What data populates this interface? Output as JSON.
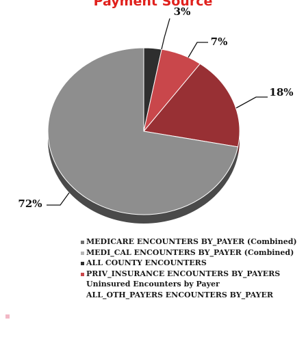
{
  "chart_data": {
    "type": "pie",
    "title": "Payment Source",
    "slices": [
      {
        "label": "ALL COUNTY ENCOUNTERS",
        "value": 3,
        "label_text": "3%",
        "color": "#2e2e2e",
        "side_color": "#1a1a1a"
      },
      {
        "label": "PRIV_INSURANCE ENCOUNTERS BY_PAYERS",
        "value": 7,
        "label_text": "7%",
        "color": "#c9474b",
        "side_color": "#8f2d30"
      },
      {
        "label": "Uninsured Encounters by Payer",
        "value": 18,
        "label_text": "18%",
        "color": "#983034",
        "side_color": "#6b1f22"
      },
      {
        "label": "MEDICARE ENCOUNTERS BY_PAYER (Combined)",
        "value": 72,
        "label_text": "72%",
        "color": "#8e8e8e",
        "side_color": "#4a4a4a"
      }
    ],
    "legend": {
      "placement": "bottom",
      "entries": [
        {
          "text": "",
          "color": "#983034"
        },
        {
          "text": "MEDICARE ENCOUNTERS BY_PAYER (Combined)",
          "color": "#6e6e6e"
        },
        {
          "text": "MEDI_CAL ENCOUNTERS BY_PAYER (Combined)",
          "color": "#b5b5b5"
        },
        {
          "text": "ALL COUNTY ENCOUNTERS",
          "color": "#2e2e2e"
        },
        {
          "text": "PRIV_INSURANCE ENCOUNTERS BY_PAYERS",
          "color": "#c9474b"
        },
        {
          "text": "Uninsured Encounters by Payer",
          "color": ""
        },
        {
          "text": "ALL_OTH_PAYERS ENCOUNTERS BY_PAYER",
          "color": ""
        }
      ]
    }
  }
}
